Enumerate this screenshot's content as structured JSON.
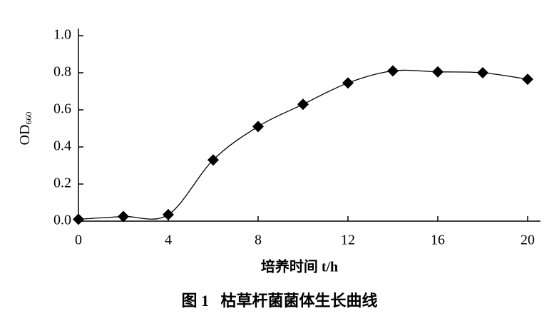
{
  "chart_data": {
    "type": "line",
    "caption": "图 1   枯草杆菌菌体生长曲线",
    "xlabel": "培养时间 t/h",
    "ylabel": {
      "text": "OD",
      "subscript": "660"
    },
    "x": [
      0,
      2,
      4,
      6,
      8,
      10,
      12,
      14,
      16,
      18,
      20
    ],
    "series": [
      {
        "color": "#000000",
        "values": [
          0.01,
          0.025,
          0.035,
          0.33,
          0.51,
          0.63,
          0.745,
          0.81,
          0.805,
          0.8,
          0.765
        ]
      }
    ],
    "xlim": [
      0,
      20
    ],
    "xticks": [
      0,
      4,
      8,
      12,
      16,
      20
    ],
    "ylim": [
      0,
      1
    ],
    "yticks": [
      {
        "value": 0,
        "label": "0.0"
      },
      0.2,
      0.4,
      0.6,
      0.8,
      {
        "value": 1,
        "label": "1.0"
      }
    ],
    "grid": false
  }
}
